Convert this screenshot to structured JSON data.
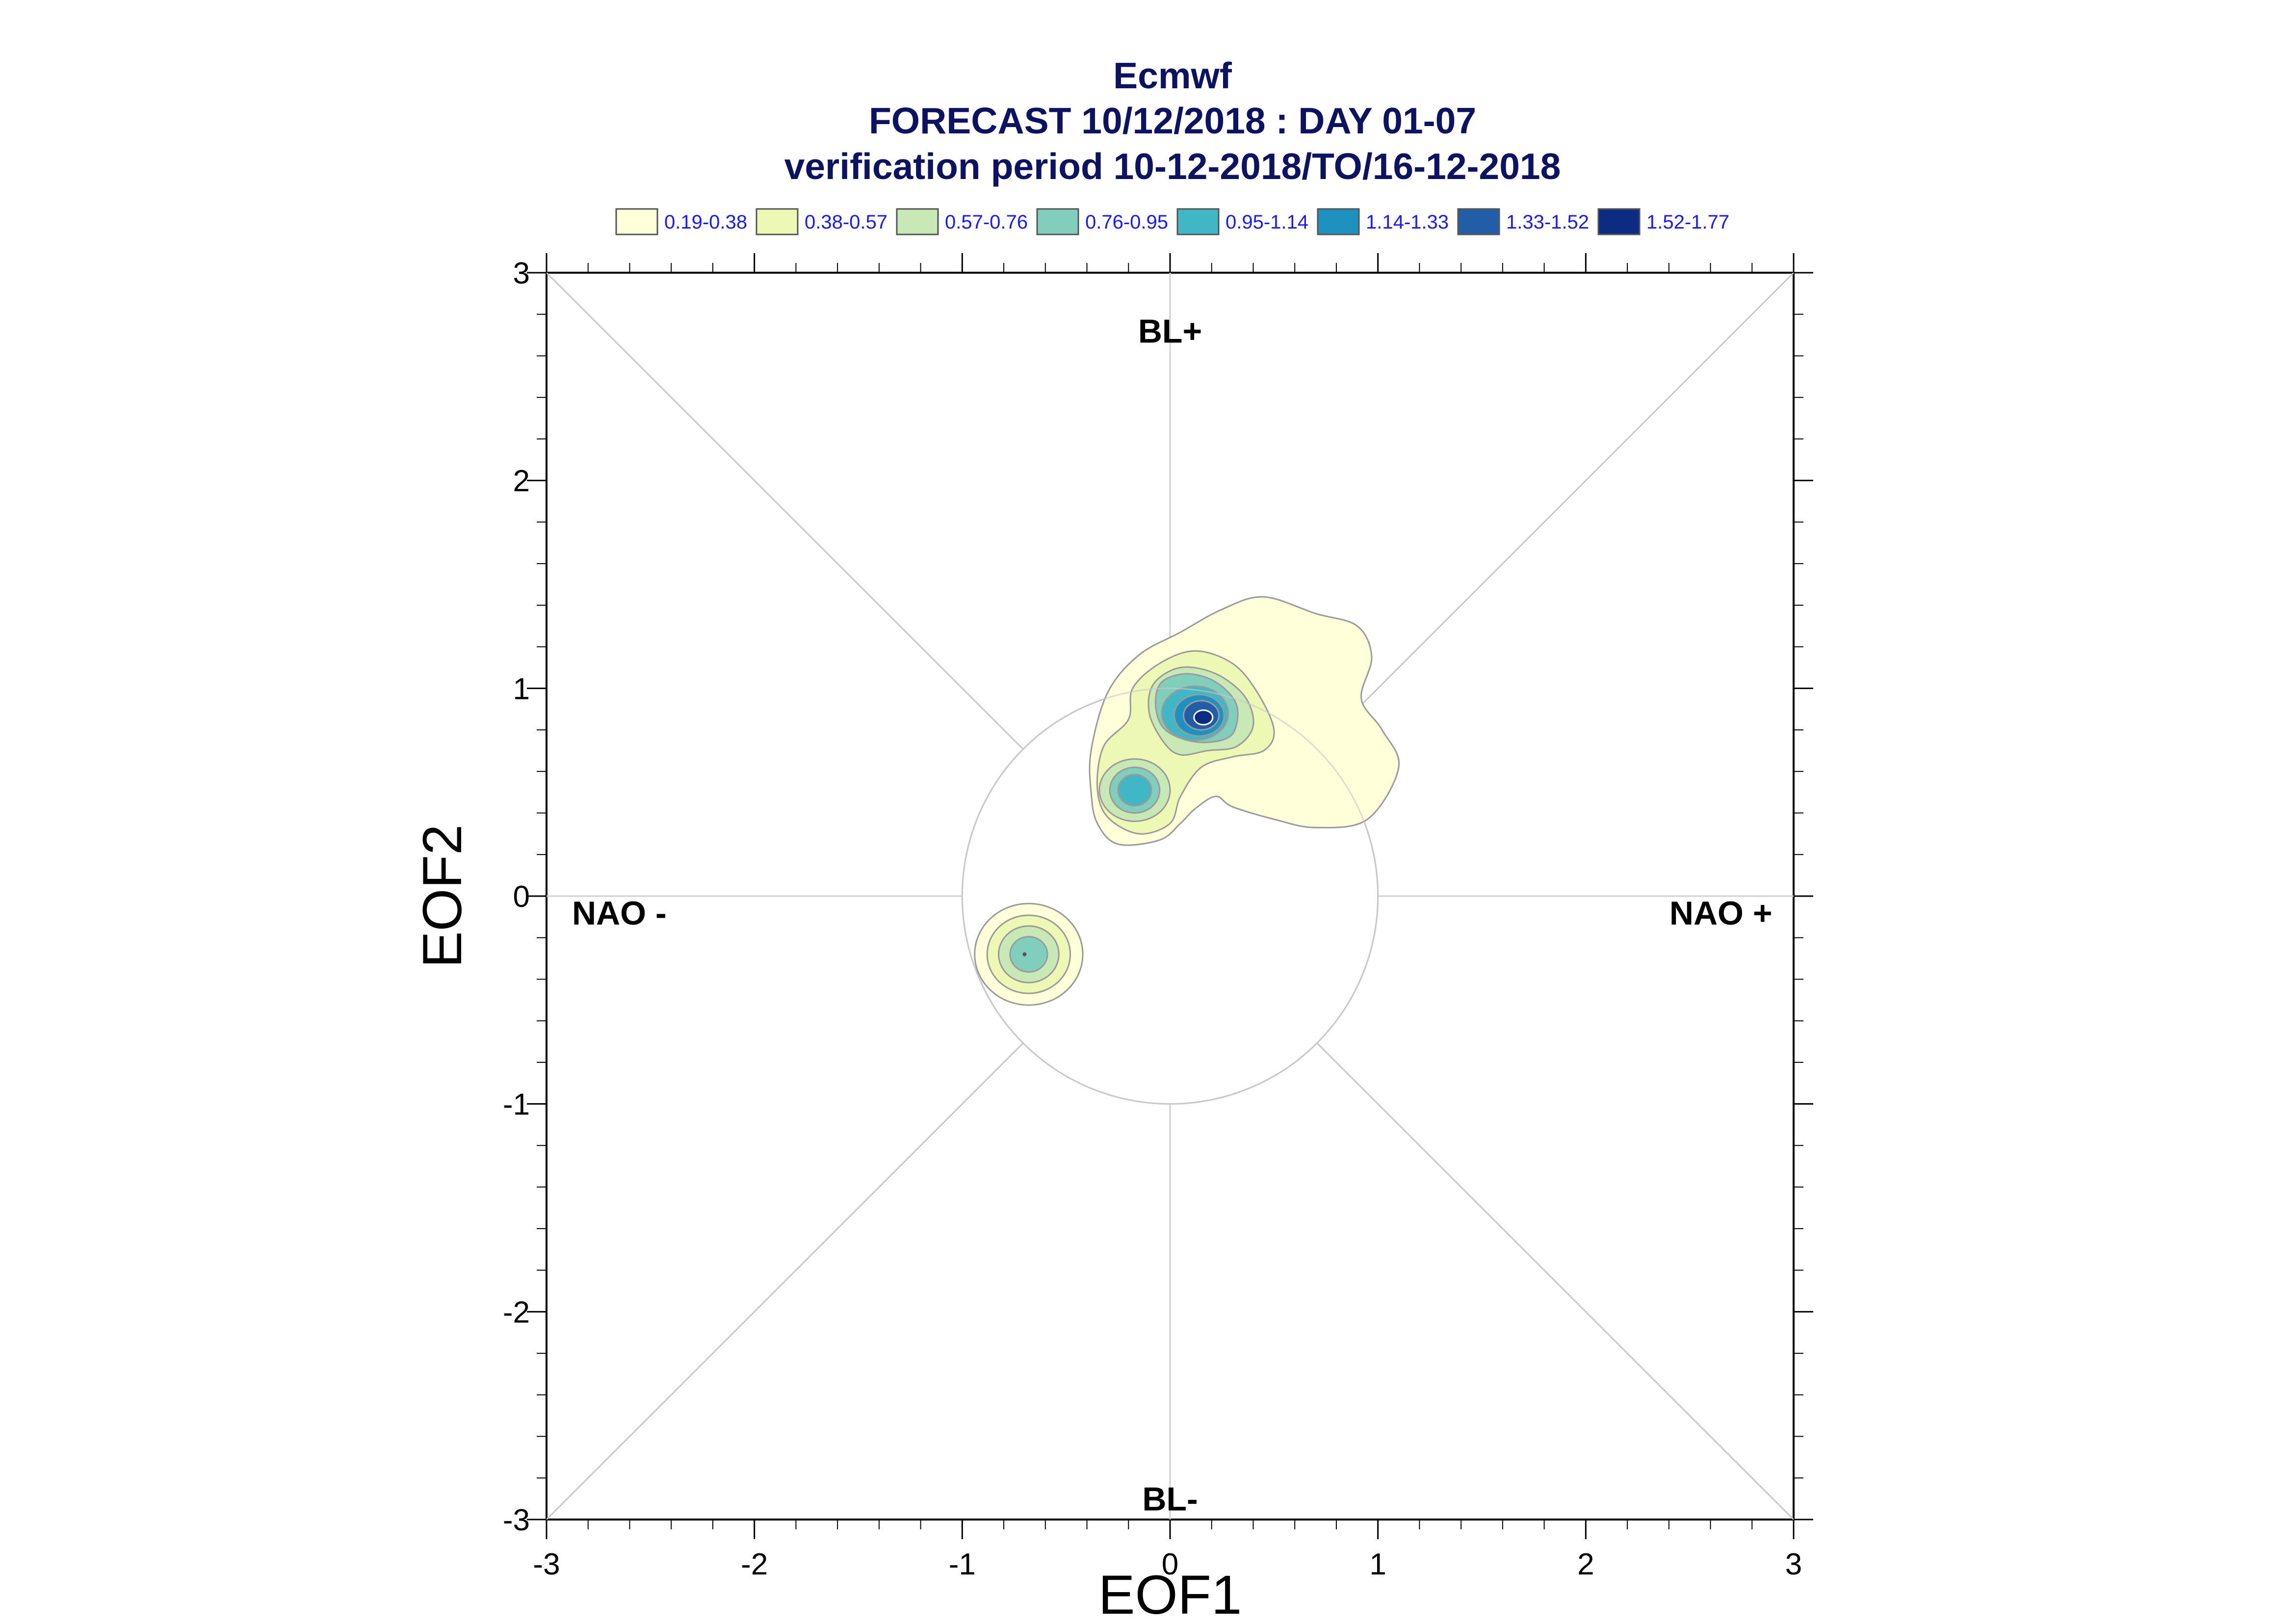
{
  "chart_data": {
    "type": "contour",
    "title": "Ecmwf",
    "subtitle_lines": [
      "FORECAST 10/12/2018 : DAY 01-07",
      "verification period 10-12-2018/TO/16-12-2018"
    ],
    "xlabel": "EOF1",
    "ylabel": "EOF2",
    "xlim": [
      -3,
      3
    ],
    "ylim": [
      -3,
      3
    ],
    "xticks": [
      -3,
      -2,
      -1,
      0,
      1,
      2,
      3
    ],
    "yticks": [
      -3,
      -2,
      -1,
      0,
      1,
      2,
      3
    ],
    "reference_circle_radius": 1,
    "diagonals": true,
    "regime_labels": [
      {
        "text": "BL+",
        "x": 0,
        "y": 2.72
      },
      {
        "text": "BL-",
        "x": 0,
        "y": -2.9
      },
      {
        "text": "NAO -",
        "x": -2.65,
        "y": -0.08
      },
      {
        "text": "NAO +",
        "x": 2.65,
        "y": -0.08
      }
    ],
    "legend": {
      "placement": "top",
      "levels": [
        {
          "label": "0.19-0.38",
          "color": "#ffffd9"
        },
        {
          "label": "0.38-0.57",
          "color": "#eef8b5"
        },
        {
          "label": "0.57-0.76",
          "color": "#c8e8b5"
        },
        {
          "label": "0.76-0.95",
          "color": "#80cebb"
        },
        {
          "label": "0.95-1.14",
          "color": "#41b6c4"
        },
        {
          "label": "1.14-1.33",
          "color": "#1d91c0"
        },
        {
          "label": "1.33-1.52",
          "color": "#225ea8"
        },
        {
          "label": "1.52-1.77",
          "color": "#0c2c84"
        }
      ]
    },
    "density_centers": [
      {
        "name": "main",
        "x": 0.15,
        "y": 0.87,
        "peak_level": 8
      },
      {
        "name": "secondary",
        "x": -0.17,
        "y": 0.51,
        "peak_level": 5
      },
      {
        "name": "third",
        "x": -0.68,
        "y": -0.28,
        "peak_level": 4
      }
    ]
  }
}
